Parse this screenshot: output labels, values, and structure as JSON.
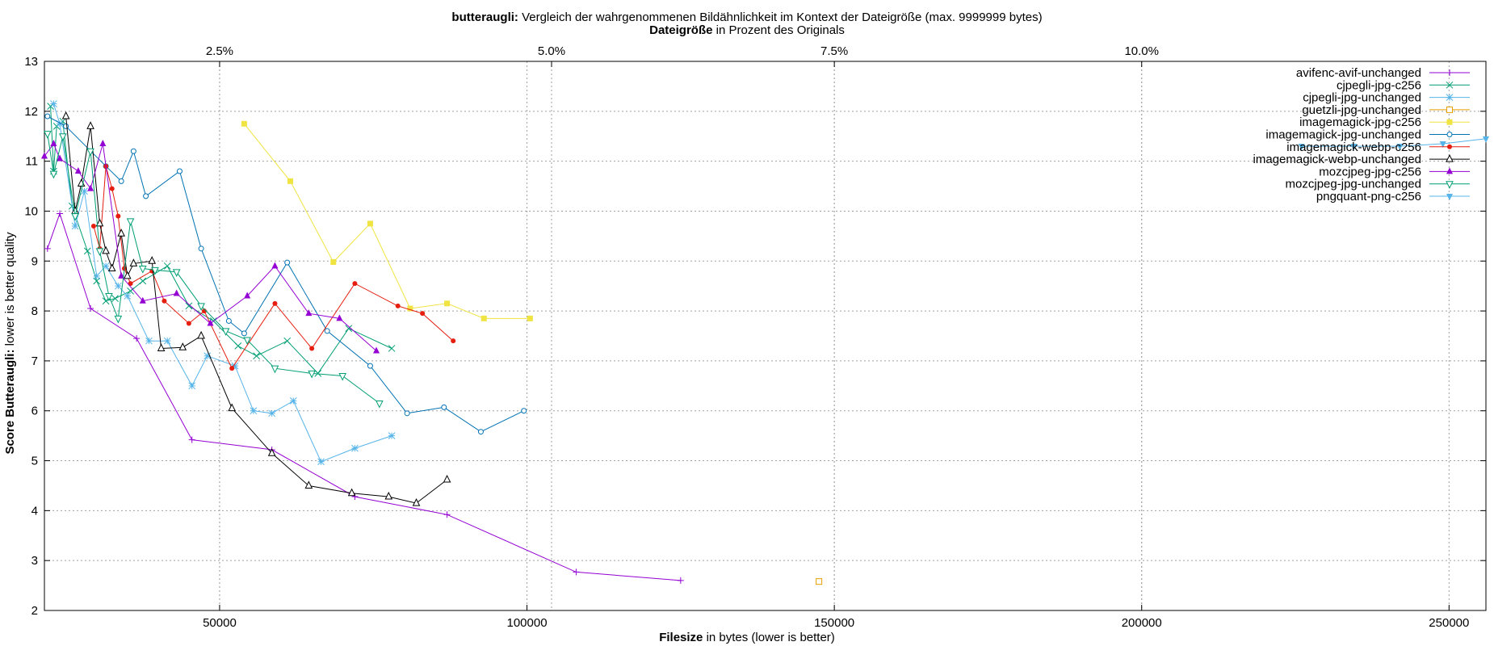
{
  "chart_data": {
    "type": "line",
    "title_bold": "butteraugli:",
    "title_rest": " Vergleich der wahrgenommenen Bildähnlichkeit im Kontext der Dateigröße (max. 9999999 bytes)",
    "x2label_bold": "Dateigröße",
    "x2label_rest": " in Prozent des Originals",
    "xlabel_bold": "Filesize",
    "xlabel_rest": " in bytes (lower is better)",
    "ylabel_bold": "Score Butteraugli:",
    "ylabel_rest": " lower is better quality",
    "xlim": [
      21500,
      256000
    ],
    "ylim": [
      2,
      13
    ],
    "x2_ticks_percent_at_x": [
      [
        2.5,
        50000
      ],
      [
        5.0,
        104000
      ],
      [
        7.5,
        150000
      ],
      [
        10.0,
        200000
      ]
    ],
    "xticks": [
      "50000",
      "100000",
      "150000",
      "200000",
      "250000"
    ],
    "yticks": [
      "2",
      "3",
      "4",
      "5",
      "6",
      "7",
      "8",
      "9",
      "10",
      "11",
      "12",
      "13"
    ],
    "x2ticks": [
      "2.5%",
      "5.0%",
      "7.5%",
      "10.0%"
    ],
    "grid": true,
    "legend_position": "top-right",
    "series": [
      {
        "name": "avifenc-avif-unchanged",
        "color": "#9400d3",
        "marker": "plus",
        "points": [
          [
            22000,
            9.25
          ],
          [
            24000,
            9.95
          ],
          [
            29000,
            8.05
          ],
          [
            36500,
            7.45
          ],
          [
            45500,
            5.42
          ],
          [
            58500,
            5.22
          ],
          [
            72000,
            4.28
          ],
          [
            87000,
            3.92
          ],
          [
            108000,
            2.77
          ],
          [
            125000,
            2.6
          ]
        ]
      },
      {
        "name": "cjpegli-jpg-c256",
        "color": "#009e73",
        "marker": "cross",
        "points": [
          [
            22500,
            12.1
          ],
          [
            23000,
            10.8
          ],
          [
            23500,
            11.7
          ],
          [
            24500,
            11.8
          ],
          [
            26000,
            10.1
          ],
          [
            28500,
            9.2
          ],
          [
            30000,
            8.6
          ],
          [
            31500,
            8.2
          ],
          [
            33000,
            8.25
          ],
          [
            35500,
            8.4
          ],
          [
            37500,
            8.6
          ],
          [
            41500,
            8.9
          ],
          [
            45000,
            8.1
          ],
          [
            49000,
            7.8
          ],
          [
            53000,
            7.3
          ],
          [
            56000,
            7.1
          ],
          [
            61000,
            7.4
          ],
          [
            66000,
            6.75
          ],
          [
            71000,
            7.65
          ],
          [
            78000,
            7.25
          ]
        ]
      },
      {
        "name": "cjpegli-jpg-unchanged",
        "color": "#56b4e9",
        "marker": "star",
        "points": [
          [
            23000,
            12.15
          ],
          [
            24000,
            11.75
          ],
          [
            26500,
            9.7
          ],
          [
            28000,
            10.4
          ],
          [
            30000,
            8.7
          ],
          [
            31500,
            8.9
          ],
          [
            33500,
            8.5
          ],
          [
            35000,
            8.3
          ],
          [
            38500,
            7.4
          ],
          [
            41500,
            7.4
          ],
          [
            45500,
            6.5
          ],
          [
            48000,
            7.1
          ],
          [
            52500,
            6.9
          ],
          [
            55500,
            6.0
          ],
          [
            58500,
            5.95
          ],
          [
            62000,
            6.2
          ],
          [
            66500,
            4.98
          ],
          [
            72000,
            5.25
          ],
          [
            78000,
            5.5
          ]
        ]
      },
      {
        "name": "guetzli-jpg-unchanged",
        "color": "#e69f00",
        "marker": "open-square",
        "points": [
          [
            147500,
            2.58
          ]
        ]
      },
      {
        "name": "imagemagick-jpg-c256",
        "color": "#f0e442",
        "marker": "filled-square",
        "points": [
          [
            54000,
            11.75
          ],
          [
            61500,
            10.6
          ],
          [
            68500,
            8.98
          ],
          [
            74500,
            9.75
          ],
          [
            81000,
            8.05
          ],
          [
            87000,
            8.15
          ],
          [
            93000,
            7.85
          ],
          [
            100500,
            7.85
          ]
        ]
      },
      {
        "name": "imagemagick-jpg-unchanged",
        "color": "#0072b2",
        "marker": "open-circle",
        "points": [
          [
            22000,
            11.9
          ],
          [
            25000,
            11.7
          ],
          [
            31500,
            10.9
          ],
          [
            34000,
            10.6
          ],
          [
            36000,
            11.2
          ],
          [
            38000,
            10.3
          ],
          [
            43500,
            10.8
          ],
          [
            47000,
            9.25
          ],
          [
            51500,
            7.8
          ],
          [
            54000,
            7.55
          ],
          [
            61000,
            8.97
          ],
          [
            67500,
            7.6
          ],
          [
            74500,
            6.9
          ],
          [
            80500,
            5.95
          ],
          [
            86500,
            6.07
          ],
          [
            92500,
            5.58
          ],
          [
            99500,
            6.0
          ]
        ]
      },
      {
        "name": "imagemagick-webp-c256",
        "color": "#e51e10",
        "marker": "filled-circle",
        "points": [
          [
            29500,
            9.7
          ],
          [
            30500,
            9.25
          ],
          [
            31500,
            10.9
          ],
          [
            32500,
            10.45
          ],
          [
            33500,
            9.9
          ],
          [
            34500,
            8.85
          ],
          [
            35500,
            8.55
          ],
          [
            39000,
            8.8
          ],
          [
            41000,
            8.2
          ],
          [
            45000,
            7.75
          ],
          [
            47500,
            8.0
          ],
          [
            52000,
            6.85
          ],
          [
            59000,
            8.15
          ],
          [
            65000,
            7.25
          ],
          [
            72000,
            8.55
          ],
          [
            79000,
            8.1
          ],
          [
            83000,
            7.95
          ],
          [
            88000,
            7.4
          ]
        ]
      },
      {
        "name": "imagemagick-webp-unchanged",
        "color": "#000000",
        "marker": "open-triangle",
        "points": [
          [
            25000,
            11.9
          ],
          [
            26500,
            10.0
          ],
          [
            27500,
            10.55
          ],
          [
            29000,
            11.7
          ],
          [
            30500,
            9.75
          ],
          [
            31500,
            9.2
          ],
          [
            32500,
            8.85
          ],
          [
            34000,
            9.55
          ],
          [
            35000,
            8.7
          ],
          [
            36000,
            8.95
          ],
          [
            39000,
            9.0
          ],
          [
            40500,
            7.25
          ],
          [
            44000,
            7.27
          ],
          [
            47000,
            7.5
          ],
          [
            52000,
            6.05
          ],
          [
            58500,
            5.15
          ],
          [
            64500,
            4.5
          ],
          [
            71500,
            4.35
          ],
          [
            77500,
            4.28
          ],
          [
            82000,
            4.15
          ],
          [
            87000,
            4.62
          ]
        ]
      },
      {
        "name": "mozcjpeg-jpg-c256",
        "color": "#9400d3",
        "marker": "filled-triangle",
        "points": [
          [
            21500,
            11.1
          ],
          [
            23000,
            11.35
          ],
          [
            24000,
            11.05
          ],
          [
            27000,
            10.8
          ],
          [
            29000,
            10.45
          ],
          [
            31000,
            11.35
          ],
          [
            34000,
            8.7
          ],
          [
            37500,
            8.2
          ],
          [
            43000,
            8.35
          ],
          [
            48500,
            7.75
          ],
          [
            54500,
            8.3
          ],
          [
            59000,
            8.9
          ],
          [
            64500,
            7.95
          ],
          [
            69500,
            7.85
          ],
          [
            75500,
            7.2
          ]
        ]
      },
      {
        "name": "mozcjpeg-jpg-unchanged",
        "color": "#009e73",
        "marker": "open-down-triangle",
        "points": [
          [
            22000,
            11.55
          ],
          [
            23000,
            10.75
          ],
          [
            24500,
            11.5
          ],
          [
            26500,
            9.9
          ],
          [
            29000,
            11.2
          ],
          [
            30500,
            9.2
          ],
          [
            32000,
            8.3
          ],
          [
            33500,
            7.85
          ],
          [
            35500,
            9.8
          ],
          [
            37500,
            8.85
          ],
          [
            39500,
            8.82
          ],
          [
            43000,
            8.78
          ],
          [
            47000,
            8.1
          ],
          [
            51000,
            7.6
          ],
          [
            54500,
            7.42
          ],
          [
            59000,
            6.85
          ],
          [
            65000,
            6.75
          ],
          [
            70000,
            6.7
          ],
          [
            76000,
            6.15
          ]
        ]
      },
      {
        "name": "pngquant-png-c256",
        "color": "#56b4e9",
        "marker": "filled-down-triangle",
        "points": [
          [
            226000,
            11.3
          ],
          [
            234500,
            11.3
          ],
          [
            242000,
            11.3
          ],
          [
            249000,
            11.35
          ],
          [
            256000,
            11.45
          ]
        ]
      }
    ]
  }
}
